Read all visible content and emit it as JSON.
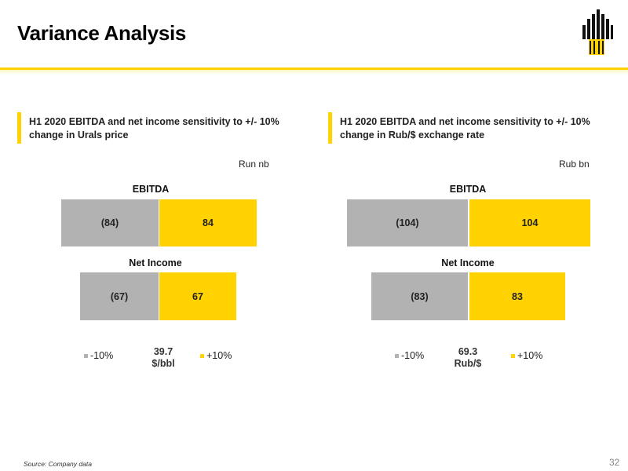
{
  "page": {
    "title": "Variance Analysis",
    "source": "Source: Company data",
    "page_number": "32"
  },
  "colors": {
    "accent": "#ffd200",
    "negative": "#b2b2b2",
    "positive": "#ffd200"
  },
  "chart_data": [
    {
      "type": "bar",
      "title": "H1 2020 EBITDA and net income sensitivity to +/- 10% change in Urals price",
      "unit": "Run nb",
      "layout": "diverging-horizontal",
      "categories": [
        "EBITDA",
        "Net Income"
      ],
      "series": [
        {
          "name": "-10%",
          "values": [
            -84,
            -67
          ],
          "labels": [
            "(84)",
            "(67)"
          ],
          "color": "#b2b2b2"
        },
        {
          "name": "+10%",
          "values": [
            84,
            67
          ],
          "labels": [
            "84",
            "67"
          ],
          "color": "#ffd200"
        }
      ],
      "base": {
        "value": "39.7",
        "unit": "$/bbl"
      },
      "legend": [
        "-10%",
        "+10%"
      ]
    },
    {
      "type": "bar",
      "title": "H1 2020 EBITDA and net income sensitivity to +/- 10% change in Rub/$ exchange rate",
      "unit": "Rub bn",
      "layout": "diverging-horizontal",
      "categories": [
        "EBITDA",
        "Net Income"
      ],
      "series": [
        {
          "name": "-10%",
          "values": [
            -104,
            -83
          ],
          "labels": [
            "(104)",
            "(83)"
          ],
          "color": "#b2b2b2"
        },
        {
          "name": "+10%",
          "values": [
            104,
            83
          ],
          "labels": [
            "104",
            "83"
          ],
          "color": "#ffd200"
        }
      ],
      "base": {
        "value": "69.3",
        "unit": "Rub/$"
      },
      "legend": [
        "-10%",
        "+10%"
      ]
    }
  ]
}
